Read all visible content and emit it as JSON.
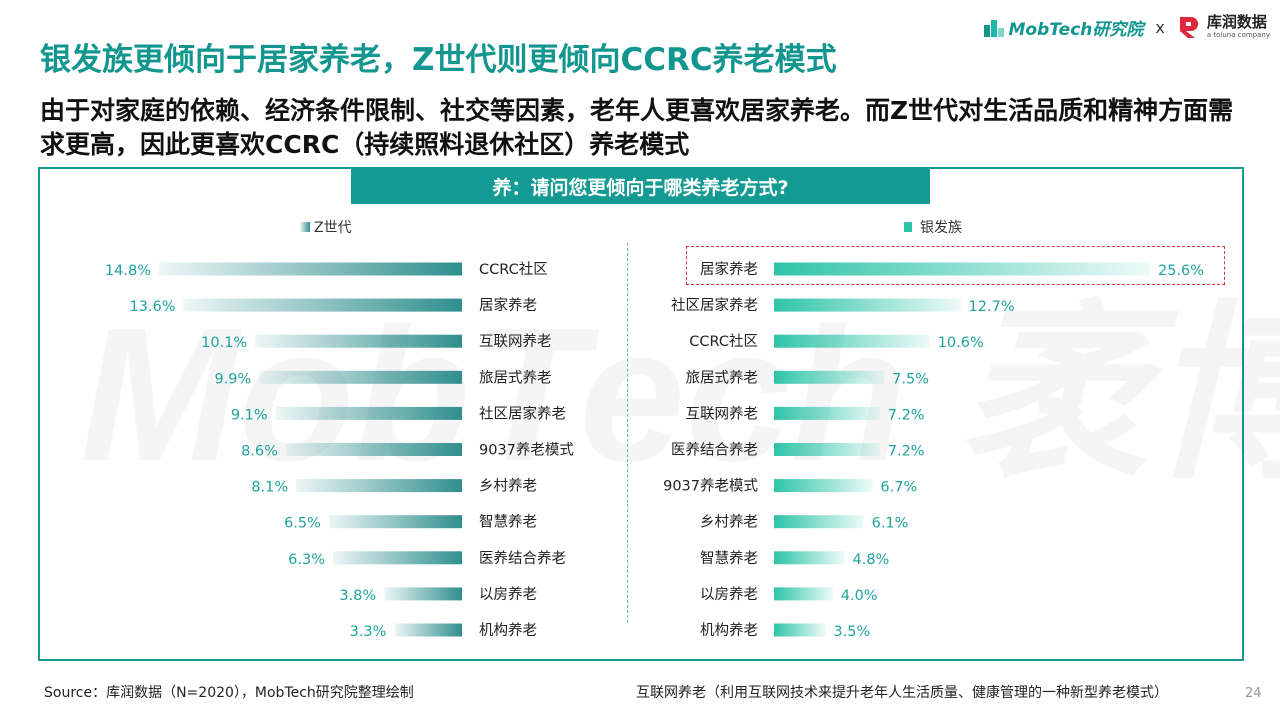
{
  "title": "银发族更倾向于居家养老，Z世代则更倾向CCRC养老模式",
  "subtitle": "由于对家庭的依赖、经济条件限制、社交等因素，老年人更喜欢居家养老。而Z世代对生活品质和精神方面需求更高，因此更喜欢CCRC（持续照料退休社区）养老模式",
  "logos": {
    "mobtech": "MobTech研究院",
    "separator": "x",
    "kurun_name": "库润数据",
    "kurun_sub": "a toluna company"
  },
  "question": "养：请问您更倾向于哪类养老方式?",
  "watermark": "MobTech 袤博",
  "colors": {
    "brand": "#12968f",
    "zgen_bar": "#2f8f8e",
    "silver_bar": "#2ec4a8",
    "label_teal": "#1fa39c",
    "highlight": "#d9353b"
  },
  "chart_data": [
    {
      "type": "bar",
      "orientation": "horizontal",
      "legend": "Z世代",
      "categories": [
        "CCRC社区",
        "居家养老",
        "互联网养老",
        "旅居式养老",
        "社区居家养老",
        "9037养老模式",
        "乡村养老",
        "智慧养老",
        "医养结合养老",
        "以房养老",
        "机构养老"
      ],
      "values": [
        14.8,
        13.6,
        10.1,
        9.9,
        9.1,
        8.6,
        8.1,
        6.5,
        6.3,
        3.8,
        3.3
      ],
      "value_labels": [
        "14.8%",
        "13.6%",
        "10.1%",
        "9.9%",
        "9.1%",
        "8.6%",
        "8.1%",
        "6.5%",
        "6.3%",
        "3.8%",
        "3.3%"
      ],
      "unit": "%"
    },
    {
      "type": "bar",
      "orientation": "horizontal",
      "legend": "银发族",
      "categories": [
        "居家养老",
        "社区居家养老",
        "CCRC社区",
        "旅居式养老",
        "互联网养老",
        "医养结合养老",
        "9037养老模式",
        "乡村养老",
        "智慧养老",
        "以房养老",
        "机构养老"
      ],
      "values": [
        25.6,
        12.7,
        10.6,
        7.5,
        7.2,
        7.2,
        6.7,
        6.1,
        4.8,
        4.0,
        3.5
      ],
      "value_labels": [
        "25.6%",
        "12.7%",
        "10.6%",
        "7.5%",
        "7.2%",
        "7.2%",
        "6.7%",
        "6.1%",
        "4.8%",
        "4.0%",
        "3.5%"
      ],
      "unit": "%",
      "highlighted_category": "居家养老"
    }
  ],
  "footer": {
    "source": "Source：库润数据（N=2020），MobTech研究院整理绘制",
    "note": "互联网养老（利用互联网技术来提升老年人生活质量、健康管理的一种新型养老模式）",
    "page": "24"
  }
}
